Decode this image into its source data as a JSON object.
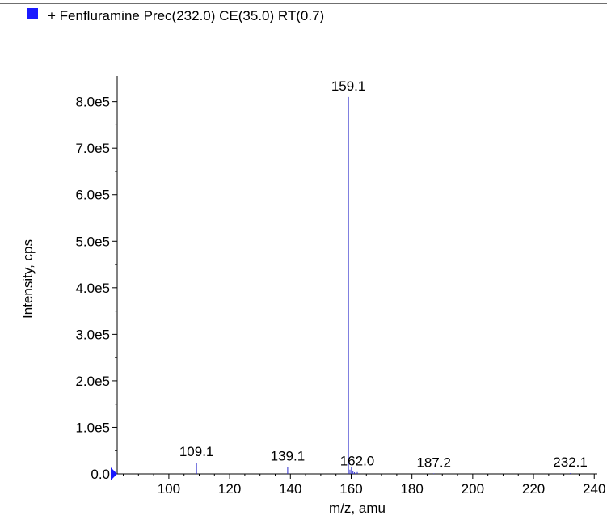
{
  "legend": {
    "label": "+ Fenfluramine Prec(232.0) CE(35.0) RT(0.7)",
    "color": "#1a1aff"
  },
  "chart_data": {
    "type": "bar",
    "title": "",
    "xlabel": "m/z, amu",
    "ylabel": "Intensity, cps",
    "xlim": [
      83,
      241
    ],
    "ylim": [
      0,
      855000
    ],
    "x_ticks": [
      100,
      120,
      140,
      160,
      180,
      200,
      220,
      240
    ],
    "x_tick_labels": [
      "100",
      "120",
      "140",
      "160",
      "180",
      "200",
      "220",
      "240"
    ],
    "y_ticks": [
      0,
      100000,
      200000,
      300000,
      400000,
      500000,
      600000,
      700000,
      800000
    ],
    "y_tick_labels": [
      "0.0",
      "1.0e5",
      "2.0e5",
      "3.0e5",
      "4.0e5",
      "5.0e5",
      "6.0e5",
      "7.0e5",
      "8.0e5"
    ],
    "series": [
      {
        "color": "#2b2bcc",
        "peaks": [
          {
            "mz": 109.1,
            "intensity": 24000
          },
          {
            "mz": 139.1,
            "intensity": 15000
          },
          {
            "mz": 159.1,
            "intensity": 810000
          },
          {
            "mz": 159.6,
            "intensity": 9000
          },
          {
            "mz": 160.1,
            "intensity": 14000
          },
          {
            "mz": 160.6,
            "intensity": 6000
          },
          {
            "mz": 161.1,
            "intensity": 3500
          },
          {
            "mz": 162.0,
            "intensity": 4000
          },
          {
            "mz": 187.2,
            "intensity": 1200
          },
          {
            "mz": 232.1,
            "intensity": 1500
          }
        ]
      }
    ],
    "peak_labels": [
      {
        "text": "109.1",
        "mz": 109.1,
        "y": 24000
      },
      {
        "text": "139.1",
        "mz": 139.1,
        "y": 15000
      },
      {
        "text": "159.1",
        "mz": 159.1,
        "y": 810000
      },
      {
        "text": "162.0",
        "mz": 162.0,
        "y": 4000
      },
      {
        "text": "187.2",
        "mz": 187.2,
        "y": 1200
      },
      {
        "text": "232.1",
        "mz": 232.1,
        "y": 1500
      }
    ]
  }
}
